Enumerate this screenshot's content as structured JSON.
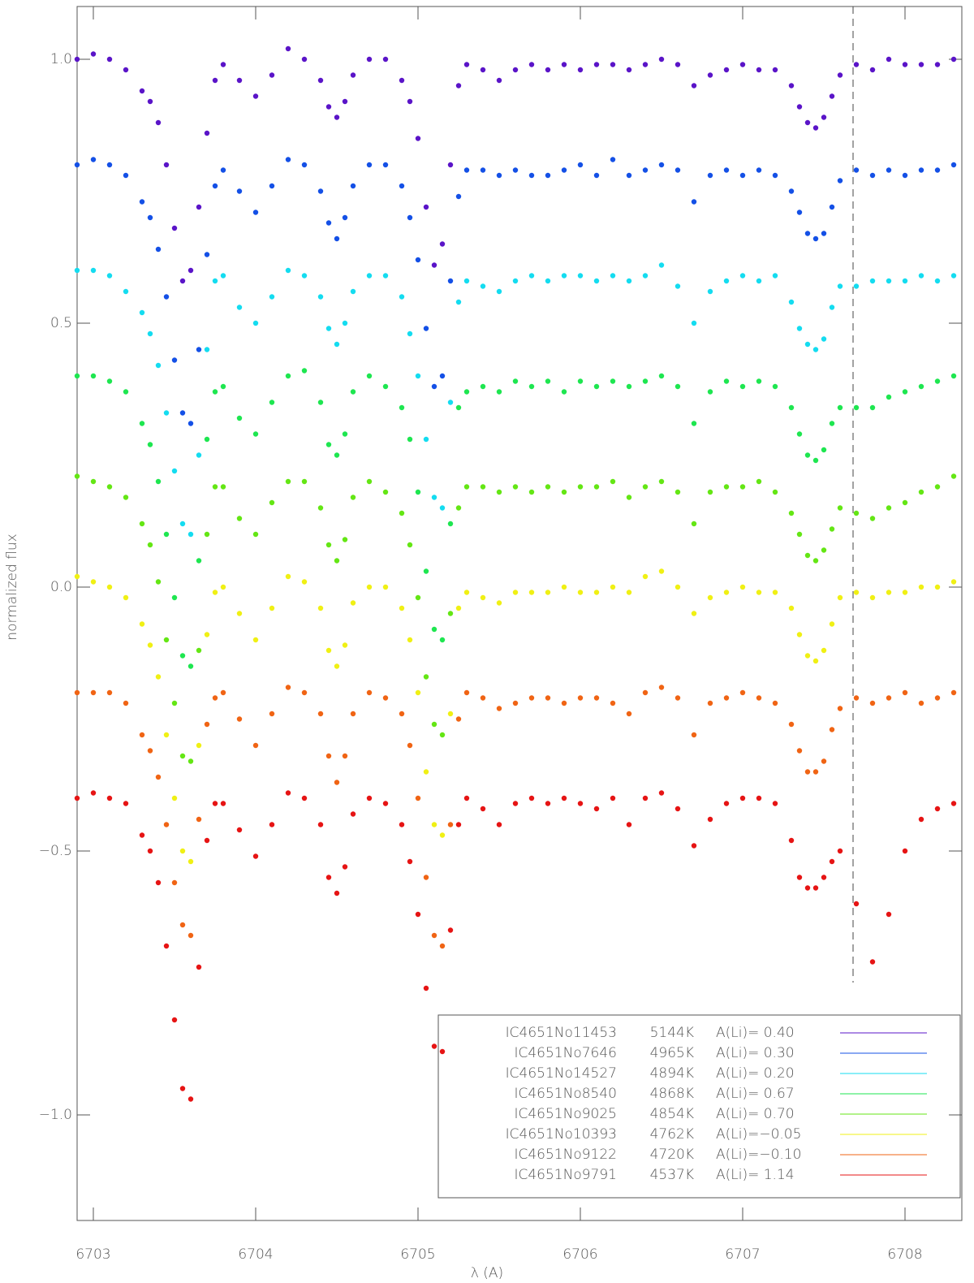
{
  "chart_data": {
    "type": "scatter",
    "xlabel": "λ (A)",
    "ylabel": "normalized flux",
    "xlim": [
      6702.9,
      6708.35
    ],
    "ylim": [
      -1.2,
      1.1
    ],
    "xticks": [
      6703,
      6704,
      6705,
      6706,
      6707,
      6708
    ],
    "yticks": [
      {
        "value": -1,
        "label": "−1.0"
      },
      {
        "value": -0.5,
        "label": "−0.5"
      },
      {
        "value": 0,
        "label": "0.0"
      },
      {
        "value": 0.5,
        "label": "0.5"
      },
      {
        "value": 1,
        "label": "1.0"
      }
    ],
    "vline_x": 6707.68,
    "legend": "lower right",
    "x": [
      6702.9,
      6703.0,
      6703.1,
      6703.2,
      6703.3,
      6703.35,
      6703.4,
      6703.45,
      6703.5,
      6703.55,
      6703.6,
      6703.65,
      6703.7,
      6703.75,
      6703.8,
      6703.9,
      6704.0,
      6704.1,
      6704.2,
      6704.3,
      6704.4,
      6704.45,
      6704.5,
      6704.55,
      6704.6,
      6704.7,
      6704.8,
      6704.9,
      6704.95,
      6705.0,
      6705.05,
      6705.1,
      6705.15,
      6705.2,
      6705.25,
      6705.3,
      6705.4,
      6705.5,
      6705.6,
      6705.7,
      6705.8,
      6705.9,
      6706.0,
      6706.1,
      6706.2,
      6706.3,
      6706.4,
      6706.5,
      6706.6,
      6706.7,
      6706.8,
      6706.9,
      6707.0,
      6707.1,
      6707.2,
      6707.3,
      6707.35,
      6707.4,
      6707.45,
      6707.5,
      6707.55,
      6707.6,
      6707.7,
      6707.8,
      6707.9,
      6708.0,
      6708.1,
      6708.2,
      6708.3
    ],
    "series": [
      {
        "name": "IC4651No11453",
        "teff": "5144K",
        "ali": "A(Li)= 0.40",
        "color": "#5a14c8",
        "values": [
          1.0,
          1.01,
          1.0,
          0.98,
          0.94,
          0.92,
          0.88,
          0.8,
          0.68,
          0.58,
          0.6,
          0.72,
          0.86,
          0.96,
          0.99,
          0.96,
          0.93,
          0.97,
          1.02,
          1.0,
          0.96,
          0.91,
          0.89,
          0.92,
          0.97,
          1.0,
          1.0,
          0.96,
          0.92,
          0.85,
          0.72,
          0.61,
          0.65,
          0.8,
          0.95,
          0.99,
          0.98,
          0.96,
          0.98,
          0.99,
          0.98,
          0.99,
          0.98,
          0.99,
          0.99,
          0.98,
          0.99,
          1.0,
          0.99,
          0.95,
          0.97,
          0.98,
          0.99,
          0.98,
          0.98,
          0.95,
          0.91,
          0.88,
          0.87,
          0.89,
          0.93,
          0.97,
          0.99,
          0.98,
          1.0,
          0.99,
          0.99,
          0.99,
          1.0
        ]
      },
      {
        "name": "IC4651No7646",
        "teff": "4965K",
        "ali": "A(Li)= 0.30",
        "color": "#1450e6",
        "values": [
          0.8,
          0.81,
          0.8,
          0.78,
          0.73,
          0.7,
          0.64,
          0.55,
          0.43,
          0.33,
          0.31,
          0.45,
          0.63,
          0.76,
          0.79,
          0.75,
          0.71,
          0.76,
          0.81,
          0.8,
          0.75,
          0.69,
          0.66,
          0.7,
          0.76,
          0.8,
          0.8,
          0.76,
          0.7,
          0.62,
          0.49,
          0.38,
          0.4,
          0.58,
          0.74,
          0.79,
          0.79,
          0.78,
          0.79,
          0.78,
          0.78,
          0.79,
          0.8,
          0.78,
          0.81,
          0.78,
          0.79,
          0.8,
          0.79,
          0.73,
          0.78,
          0.79,
          0.78,
          0.79,
          0.78,
          0.75,
          0.71,
          0.67,
          0.66,
          0.67,
          0.72,
          0.77,
          0.79,
          0.78,
          0.79,
          0.78,
          0.79,
          0.79,
          0.8
        ]
      },
      {
        "name": "IC4651No14527",
        "teff": "4894K",
        "ali": "A(Li)= 0.20",
        "color": "#14dcf0",
        "values": [
          0.6,
          0.6,
          0.59,
          0.56,
          0.52,
          0.48,
          0.42,
          0.33,
          0.22,
          0.12,
          0.1,
          0.25,
          0.45,
          0.58,
          0.59,
          0.53,
          0.5,
          0.55,
          0.6,
          0.59,
          0.55,
          0.49,
          0.46,
          0.5,
          0.56,
          0.59,
          0.59,
          0.55,
          0.48,
          0.4,
          0.28,
          0.17,
          0.15,
          0.35,
          0.54,
          0.58,
          0.57,
          0.56,
          0.58,
          0.59,
          0.58,
          0.59,
          0.59,
          0.58,
          0.59,
          0.58,
          0.59,
          0.61,
          0.57,
          0.5,
          0.56,
          0.58,
          0.59,
          0.58,
          0.59,
          0.54,
          0.49,
          0.46,
          0.45,
          0.47,
          0.53,
          0.57,
          0.57,
          0.58,
          0.58,
          0.58,
          0.59,
          0.58,
          0.59
        ]
      },
      {
        "name": "IC4651No8540",
        "teff": "4868K",
        "ali": "A(Li)= 0.67",
        "color": "#1ee650",
        "values": [
          0.4,
          0.4,
          0.39,
          0.37,
          0.31,
          0.27,
          0.2,
          0.1,
          -0.02,
          -0.13,
          -0.15,
          0.05,
          0.28,
          0.37,
          0.38,
          0.32,
          0.29,
          0.35,
          0.4,
          0.41,
          0.35,
          0.27,
          0.25,
          0.29,
          0.37,
          0.4,
          0.38,
          0.34,
          0.28,
          0.18,
          0.03,
          -0.08,
          -0.1,
          0.12,
          0.34,
          0.37,
          0.38,
          0.37,
          0.39,
          0.38,
          0.39,
          0.37,
          0.39,
          0.38,
          0.39,
          0.38,
          0.39,
          0.4,
          0.38,
          0.31,
          0.37,
          0.39,
          0.38,
          0.39,
          0.38,
          0.34,
          0.29,
          0.25,
          0.24,
          0.26,
          0.31,
          0.34,
          0.34,
          0.34,
          0.36,
          0.37,
          0.38,
          0.39,
          0.4
        ]
      },
      {
        "name": "IC4651No9025",
        "teff": "4854K",
        "ali": "A(Li)= 0.70",
        "color": "#64e614",
        "values": [
          0.21,
          0.2,
          0.19,
          0.17,
          0.12,
          0.08,
          0.01,
          -0.1,
          -0.22,
          -0.32,
          -0.33,
          -0.12,
          0.1,
          0.19,
          0.19,
          0.13,
          0.1,
          0.16,
          0.2,
          0.2,
          0.15,
          0.08,
          0.05,
          0.09,
          0.17,
          0.2,
          0.18,
          0.14,
          0.08,
          -0.02,
          -0.17,
          -0.26,
          -0.28,
          -0.05,
          0.15,
          0.19,
          0.19,
          0.18,
          0.19,
          0.18,
          0.19,
          0.18,
          0.19,
          0.19,
          0.2,
          0.17,
          0.19,
          0.2,
          0.18,
          0.12,
          0.18,
          0.19,
          0.19,
          0.2,
          0.18,
          0.14,
          0.1,
          0.06,
          0.05,
          0.07,
          0.11,
          0.15,
          0.14,
          0.13,
          0.15,
          0.16,
          0.18,
          0.19,
          0.21
        ]
      },
      {
        "name": "IC4651No10393",
        "teff": "4762K",
        "ali": "A(Li)=−0.05",
        "color": "#f0f014",
        "values": [
          0.02,
          0.01,
          0.0,
          -0.02,
          -0.07,
          -0.11,
          -0.17,
          -0.28,
          -0.4,
          -0.5,
          -0.52,
          -0.3,
          -0.09,
          -0.01,
          0.0,
          -0.05,
          -0.1,
          -0.04,
          0.02,
          0.01,
          -0.04,
          -0.12,
          -0.15,
          -0.11,
          -0.03,
          0.0,
          0.0,
          -0.04,
          -0.1,
          -0.2,
          -0.35,
          -0.45,
          -0.47,
          -0.24,
          -0.04,
          -0.01,
          -0.02,
          -0.03,
          -0.01,
          -0.01,
          -0.01,
          0.0,
          -0.01,
          -0.01,
          0.0,
          -0.01,
          0.02,
          0.03,
          0.0,
          -0.05,
          -0.02,
          -0.01,
          0.0,
          -0.01,
          -0.01,
          -0.04,
          -0.09,
          -0.13,
          -0.14,
          -0.12,
          -0.07,
          -0.02,
          -0.01,
          -0.02,
          -0.01,
          -0.01,
          0.0,
          0.0,
          0.01
        ]
      },
      {
        "name": "IC4651No9122",
        "teff": "4720K",
        "ali": "A(Li)=−0.10",
        "color": "#f06414",
        "values": [
          -0.2,
          -0.2,
          -0.2,
          -0.22,
          -0.28,
          -0.31,
          -0.36,
          -0.45,
          -0.56,
          -0.64,
          -0.66,
          -0.44,
          -0.26,
          -0.21,
          -0.2,
          -0.25,
          -0.3,
          -0.24,
          -0.19,
          -0.2,
          -0.24,
          -0.32,
          -0.37,
          -0.32,
          -0.24,
          -0.2,
          -0.21,
          -0.24,
          -0.3,
          -0.4,
          -0.55,
          -0.66,
          -0.68,
          -0.45,
          -0.25,
          -0.2,
          -0.21,
          -0.23,
          -0.22,
          -0.21,
          -0.21,
          -0.22,
          -0.21,
          -0.21,
          -0.22,
          -0.24,
          -0.2,
          -0.19,
          -0.21,
          -0.28,
          -0.22,
          -0.21,
          -0.2,
          -0.21,
          -0.22,
          -0.26,
          -0.31,
          -0.35,
          -0.35,
          -0.33,
          -0.27,
          -0.23,
          -0.21,
          -0.22,
          -0.21,
          -0.2,
          -0.22,
          -0.21,
          -0.2
        ]
      },
      {
        "name": "IC4651No9791",
        "teff": "4537K",
        "ali": "A(Li)= 1.14",
        "color": "#e61414",
        "values": [
          -0.4,
          -0.39,
          -0.4,
          -0.41,
          -0.47,
          -0.5,
          -0.56,
          -0.68,
          -0.82,
          -0.95,
          -0.97,
          -0.72,
          -0.48,
          -0.41,
          -0.41,
          -0.46,
          -0.51,
          -0.45,
          -0.39,
          -0.4,
          -0.45,
          -0.55,
          -0.58,
          -0.53,
          -0.43,
          -0.4,
          -0.41,
          -0.45,
          -0.52,
          -0.62,
          -0.76,
          -0.87,
          -0.88,
          -0.65,
          -0.45,
          -0.4,
          -0.42,
          -0.45,
          -0.41,
          -0.4,
          -0.41,
          -0.4,
          -0.41,
          -0.42,
          -0.4,
          -0.45,
          -0.4,
          -0.39,
          -0.42,
          -0.49,
          -0.44,
          -0.41,
          -0.4,
          -0.4,
          -0.41,
          -0.48,
          -0.55,
          -0.57,
          -0.57,
          -0.55,
          -0.52,
          -0.5,
          -0.6,
          -0.71,
          -0.62,
          -0.5,
          -0.44,
          -0.42,
          -0.41
        ]
      }
    ]
  }
}
